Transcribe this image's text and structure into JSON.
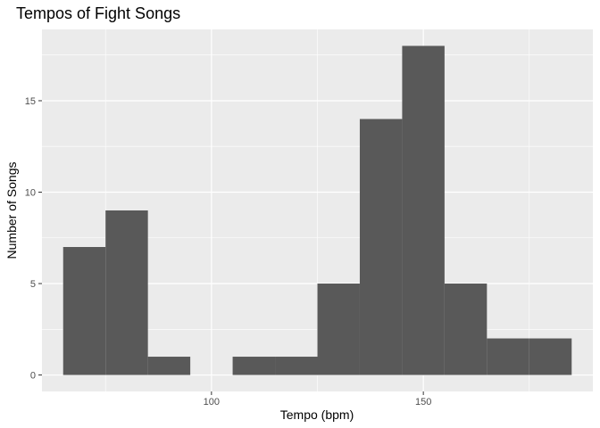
{
  "chart_data": {
    "type": "bar",
    "title": "Tempos of Fight Songs",
    "xlabel": "Tempo (bpm)",
    "ylabel": "Number of Songs",
    "binwidth": 10,
    "bins": [
      {
        "start": 65,
        "end": 75,
        "count": 7
      },
      {
        "start": 75,
        "end": 85,
        "count": 9
      },
      {
        "start": 85,
        "end": 95,
        "count": 1
      },
      {
        "start": 95,
        "end": 105,
        "count": 0
      },
      {
        "start": 105,
        "end": 115,
        "count": 1
      },
      {
        "start": 115,
        "end": 125,
        "count": 1
      },
      {
        "start": 125,
        "end": 135,
        "count": 5
      },
      {
        "start": 135,
        "end": 145,
        "count": 14
      },
      {
        "start": 145,
        "end": 155,
        "count": 18
      },
      {
        "start": 155,
        "end": 165,
        "count": 5
      },
      {
        "start": 165,
        "end": 175,
        "count": 2
      },
      {
        "start": 175,
        "end": 185,
        "count": 2
      }
    ],
    "xlim": [
      60,
      190
    ],
    "ylim": [
      -0.9,
      18.9
    ],
    "xticks": [
      100,
      150
    ],
    "xticks_minor": [
      75,
      125,
      175
    ],
    "yticks": [
      0,
      5,
      10,
      15
    ],
    "yticks_minor": [
      2.5,
      7.5,
      12.5,
      17.5
    ],
    "grid": true,
    "colors": {
      "panel": "#EBEBEB",
      "grid": "#FFFFFF",
      "bar": "#595959",
      "tick": "#333333"
    }
  }
}
